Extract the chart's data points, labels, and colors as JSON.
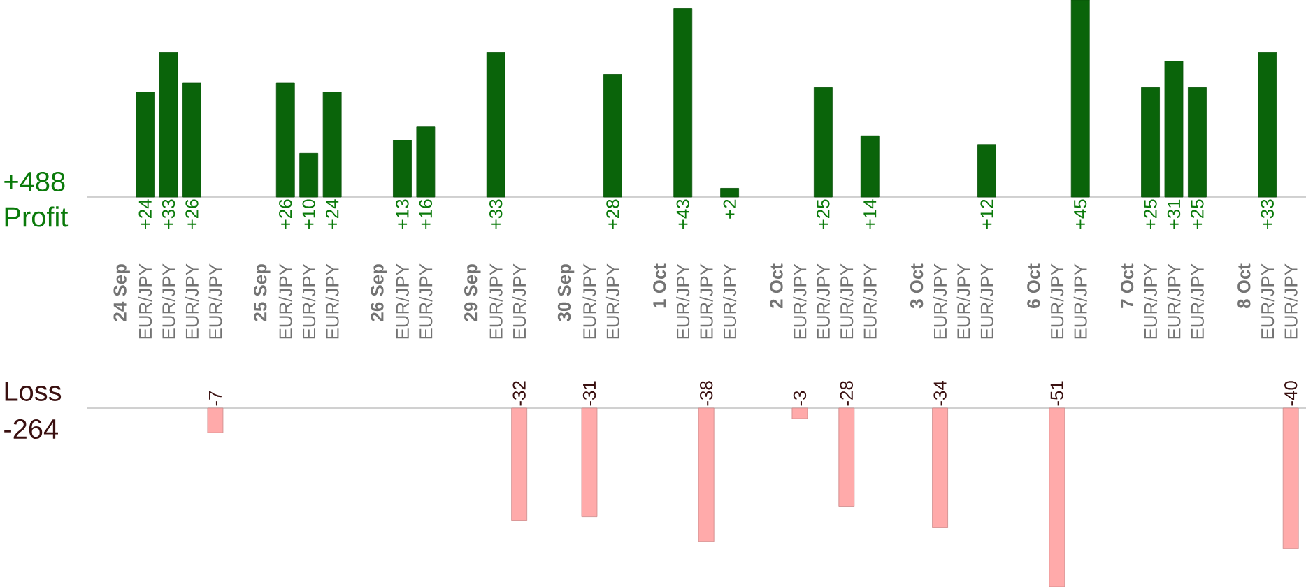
{
  "chart_data": [
    {
      "type": "bar",
      "title": "Profit",
      "annotations": [
        "+488"
      ],
      "categories": [
        "**24 Sep**",
        "EUR/JPY",
        "EUR/JPY",
        "EUR/JPY",
        "EUR/JPY",
        null,
        "**25 Sep**",
        "EUR/JPY",
        "EUR/JPY",
        "EUR/JPY",
        null,
        "**26 Sep**",
        "EUR/JPY",
        "EUR/JPY",
        null,
        "**29 Sep**",
        "EUR/JPY",
        "EUR/JPY",
        null,
        "**30 Sep**",
        "EUR/JPY",
        "EUR/JPY",
        null,
        "**1 Oct**",
        "EUR/JPY",
        "EUR/JPY",
        "EUR/JPY",
        null,
        "**2 Oct**",
        "EUR/JPY",
        "EUR/JPY",
        "EUR/JPY",
        "EUR/JPY",
        null,
        "**3 Oct**",
        "EUR/JPY",
        "EUR/JPY",
        "EUR/JPY",
        null,
        "**6 Oct**",
        "EUR/JPY",
        "EUR/JPY",
        null,
        "**7 Oct**",
        "EUR/JPY",
        "EUR/JPY",
        "EUR/JPY",
        null,
        "**8 Oct**",
        "EUR/JPY",
        "EUR/JPY"
      ],
      "values": [
        null,
        24,
        33,
        26,
        null,
        null,
        null,
        26,
        10,
        24,
        null,
        null,
        13,
        16,
        null,
        null,
        33,
        null,
        null,
        null,
        null,
        28,
        null,
        null,
        43,
        null,
        2,
        null,
        null,
        null,
        25,
        null,
        14,
        null,
        null,
        null,
        null,
        12,
        null,
        null,
        null,
        45,
        null,
        null,
        25,
        31,
        25,
        null,
        null,
        33,
        null
      ],
      "value_labels": [
        null,
        "+24",
        "+33",
        "+26",
        null,
        null,
        null,
        "+26",
        "+10",
        "+24",
        null,
        null,
        "+13",
        "+16",
        null,
        null,
        "+33",
        null,
        null,
        null,
        null,
        "+28",
        null,
        null,
        "+43",
        null,
        "+2",
        null,
        null,
        null,
        "+25",
        null,
        "+14",
        null,
        null,
        null,
        null,
        "+12",
        null,
        null,
        null,
        "+45",
        null,
        null,
        "+25",
        "+31",
        "+25",
        null,
        null,
        "+33",
        null
      ],
      "color": "#0a640a",
      "tick_labels": "x"
    },
    {
      "type": "bar",
      "title": "Loss",
      "annotations": [
        "-264"
      ],
      "categories": [
        null,
        null,
        null,
        null,
        null,
        null,
        null,
        null,
        null,
        null,
        null,
        null,
        null,
        null,
        null,
        null,
        null,
        null,
        null,
        null,
        null,
        null,
        null,
        null,
        null,
        null,
        null,
        null,
        null,
        null,
        null,
        null,
        null,
        null,
        null,
        null,
        null,
        null,
        null,
        null,
        null,
        null,
        null,
        null,
        null,
        null,
        null,
        null,
        null,
        null,
        null
      ],
      "values": [
        null,
        null,
        null,
        null,
        -7,
        null,
        null,
        null,
        null,
        null,
        null,
        null,
        null,
        null,
        null,
        null,
        null,
        -32,
        null,
        null,
        -31,
        null,
        null,
        null,
        null,
        -38,
        null,
        null,
        null,
        -3,
        null,
        -28,
        null,
        null,
        null,
        -34,
        null,
        null,
        null,
        null,
        -51,
        null,
        null,
        null,
        null,
        null,
        null,
        null,
        null,
        null,
        -40
      ],
      "value_labels": [
        null,
        null,
        null,
        null,
        "-7",
        null,
        null,
        null,
        null,
        null,
        null,
        null,
        null,
        null,
        null,
        null,
        null,
        "-32",
        null,
        null,
        "-31",
        null,
        null,
        null,
        null,
        "-38",
        null,
        null,
        null,
        "-3",
        null,
        "-28",
        null,
        null,
        null,
        "-34",
        null,
        null,
        null,
        null,
        "-51",
        null,
        null,
        null,
        null,
        null,
        null,
        null,
        null,
        null,
        "-40"
      ],
      "color": "#ffaaaa",
      "tick_labels": false
    }
  ]
}
